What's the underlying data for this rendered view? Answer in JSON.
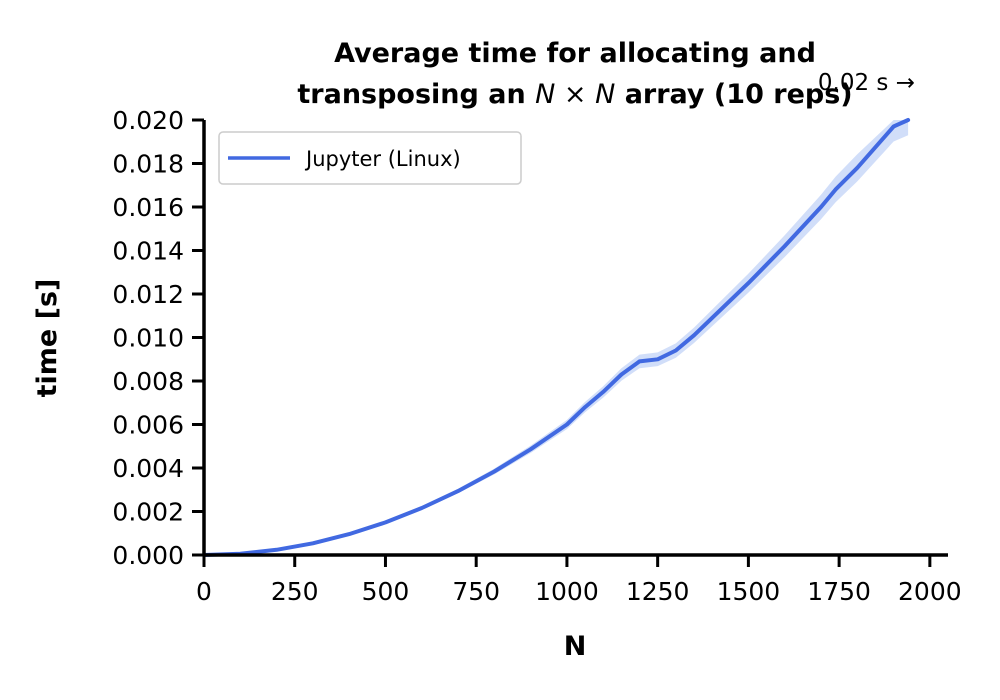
{
  "chart_data": {
    "type": "line",
    "title_line1": "Average time for allocating and",
    "title_line2_pre": "transposing an ",
    "title_line2_math": "N × N",
    "title_line2_post": " array (10 reps)",
    "xlabel": "N",
    "ylabel": "time [s]",
    "xlim": [
      0,
      2050
    ],
    "ylim": [
      0,
      0.02
    ],
    "xticks": [
      "0",
      "250",
      "500",
      "750",
      "1000",
      "1250",
      "1500",
      "1750",
      "2000"
    ],
    "yticks": [
      "0.000",
      "0.002",
      "0.004",
      "0.006",
      "0.008",
      "0.010",
      "0.012",
      "0.014",
      "0.016",
      "0.018",
      "0.020"
    ],
    "grid": false,
    "legend_position": "top-left",
    "annotation": "0.02 s →",
    "series": [
      {
        "name": "Jupyter (Linux)",
        "color": "#4169e1",
        "band_color": "#c6d6f7",
        "x": [
          0,
          100,
          200,
          300,
          400,
          500,
          600,
          700,
          800,
          900,
          1000,
          1050,
          1100,
          1150,
          1200,
          1250,
          1300,
          1350,
          1400,
          1500,
          1600,
          1700,
          1740,
          1800,
          1900,
          1940
        ],
        "y": [
          0.0,
          6e-05,
          0.00024,
          0.00054,
          0.00096,
          0.0015,
          0.00216,
          0.00294,
          0.00384,
          0.00486,
          0.006,
          0.0068,
          0.0075,
          0.0083,
          0.0089,
          0.009,
          0.0094,
          0.0101,
          0.0109,
          0.0125,
          0.0142,
          0.016,
          0.0168,
          0.0178,
          0.0197,
          0.02
        ]
      }
    ]
  }
}
